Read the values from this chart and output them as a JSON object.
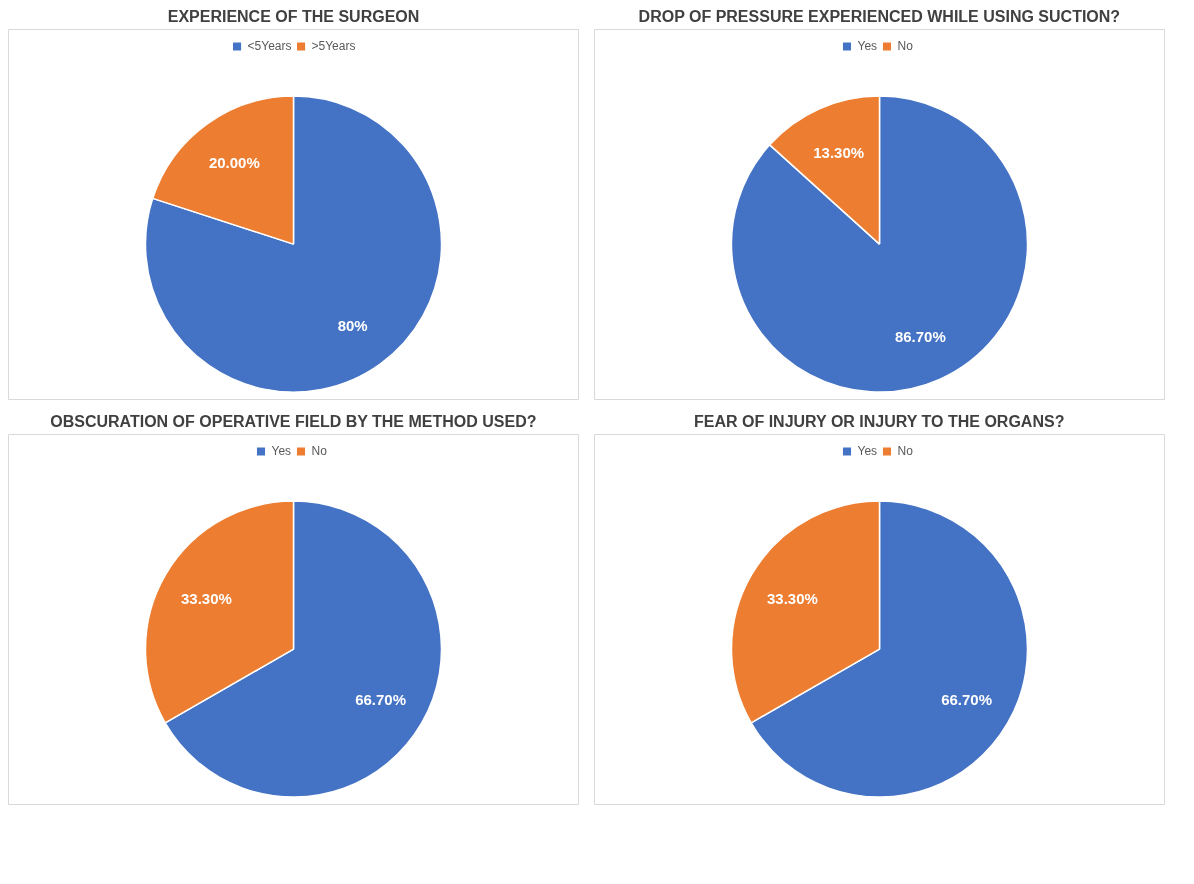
{
  "chart_data": [
    {
      "type": "pie",
      "title": "EXPERIENCE OF THE SURGEON",
      "categories": [
        "<5Years",
        ">5Years"
      ],
      "values": [
        80,
        20
      ],
      "colors": [
        "#4472c4",
        "#ed7d31"
      ],
      "value_labels": [
        "80%",
        "20.00%"
      ],
      "legend": "top"
    },
    {
      "type": "pie",
      "title": "DROP OF PRESSURE EXPERIENCED WHILE USING SUCTION?",
      "categories": [
        "Yes",
        "No"
      ],
      "values": [
        86.7,
        13.3
      ],
      "colors": [
        "#4472c4",
        "#ed7d31"
      ],
      "value_labels": [
        "86.70%",
        "13.30%"
      ],
      "legend": "top"
    },
    {
      "type": "pie",
      "title": "OBSCURATION OF OPERATIVE FIELD BY THE METHOD USED?",
      "categories": [
        "Yes",
        "No"
      ],
      "values": [
        66.7,
        33.3
      ],
      "colors": [
        "#4472c4",
        "#ed7d31"
      ],
      "value_labels": [
        "66.70%",
        "33.30%"
      ],
      "legend": "top"
    },
    {
      "type": "pie",
      "title": "FEAR OF INJURY OR INJURY TO THE ORGANS?",
      "categories": [
        "Yes",
        "No"
      ],
      "values": [
        66.7,
        33.3
      ],
      "colors": [
        "#4472c4",
        "#ed7d31"
      ],
      "value_labels": [
        "66.70%",
        "33.30%"
      ],
      "legend": "top"
    }
  ]
}
